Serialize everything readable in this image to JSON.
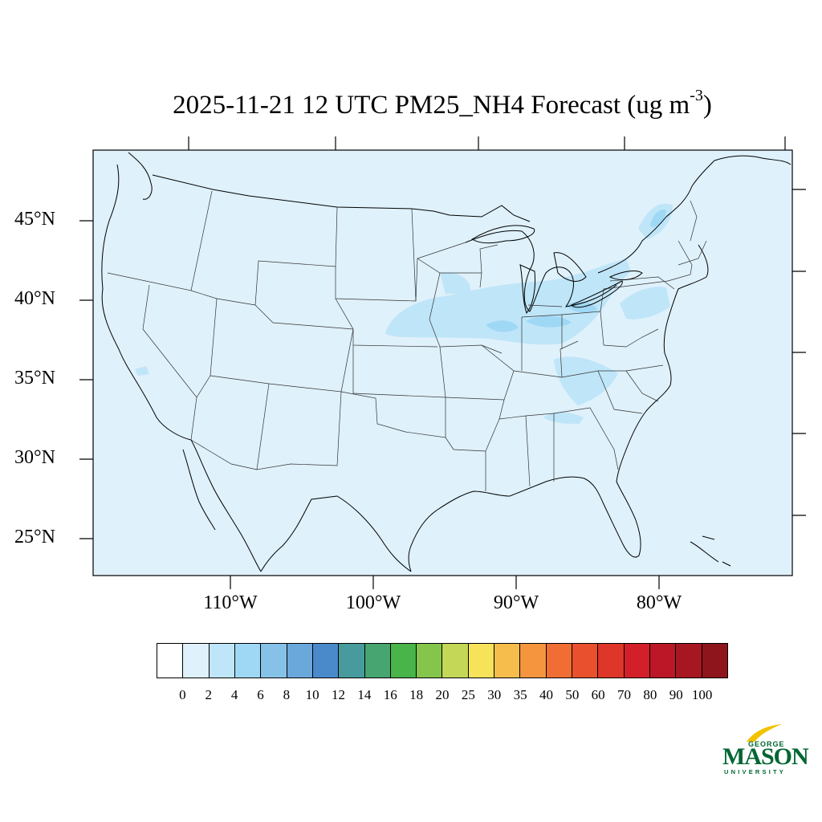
{
  "title": {
    "main": "2025-11-21 12 UTC PM25_NH4 Forecast (ug m",
    "superscript": "-3",
    "close": ")"
  },
  "map": {
    "background_color": "#dff1fb",
    "lat_labels": [
      "45°N",
      "40°N",
      "35°N",
      "30°N",
      "25°N"
    ],
    "lon_labels": [
      "110°W",
      "100°W",
      "90°W",
      "80°W"
    ]
  },
  "colorbar": {
    "colors": [
      "#ffffff",
      "#dff1fb",
      "#bfe5f8",
      "#9fd8f5",
      "#86c2e8",
      "#6aa8dc",
      "#4a8acb",
      "#479b9c",
      "#46a570",
      "#49b449",
      "#86c54b",
      "#c5d756",
      "#f7e35a",
      "#f6bd4c",
      "#f5963f",
      "#f06e33",
      "#e8502e",
      "#de3629",
      "#d21f2a",
      "#bb1726",
      "#a61722",
      "#8e151c"
    ],
    "labels": [
      "0",
      "2",
      "4",
      "6",
      "8",
      "10",
      "12",
      "14",
      "16",
      "18",
      "20",
      "25",
      "30",
      "35",
      "40",
      "50",
      "60",
      "70",
      "80",
      "90",
      "100"
    ]
  },
  "logo": {
    "line1": "GEORGE",
    "line2": "MASON",
    "line3": "UNIVERSITY",
    "color": "#006633",
    "accent": "#f2c200"
  }
}
